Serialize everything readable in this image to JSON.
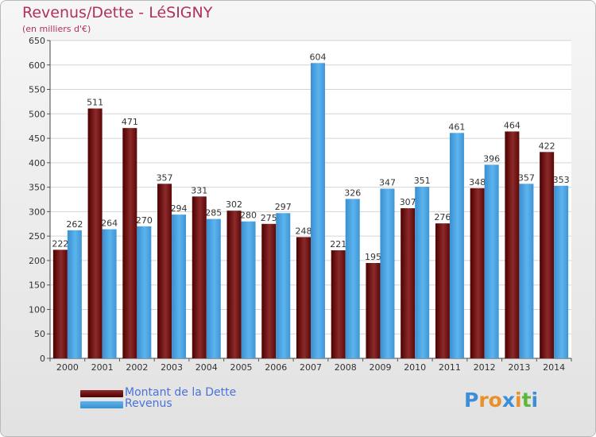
{
  "chart_data": {
    "type": "bar",
    "title": "Revenus/Dette - LéSIGNY",
    "subtitle": "(en milliers d'€)",
    "categories": [
      "2000",
      "2001",
      "2002",
      "2003",
      "2004",
      "2005",
      "2006",
      "2007",
      "2008",
      "2009",
      "2010",
      "2011",
      "2012",
      "2013",
      "2014"
    ],
    "series": [
      {
        "name": "Montant de la Dette",
        "color": "#7a1a1a",
        "values": [
          222,
          511,
          471,
          357,
          331,
          302,
          275,
          248,
          221,
          195,
          307,
          276,
          348,
          464,
          422
        ]
      },
      {
        "name": "Revenus",
        "color": "#4fa7e3",
        "values": [
          262,
          264,
          270,
          294,
          285,
          280,
          297,
          604,
          326,
          347,
          351,
          461,
          396,
          357,
          353
        ]
      }
    ],
    "ylim": [
      0,
      650
    ],
    "yticks": [
      0,
      50,
      100,
      150,
      200,
      250,
      300,
      350,
      400,
      450,
      500,
      550,
      600,
      650
    ],
    "grid": true,
    "legend_position": "bottom-left"
  },
  "logo": {
    "text": "Proxiti",
    "letters": [
      "P",
      "r",
      "o",
      "x",
      "i",
      "t",
      "i"
    ],
    "letter_colors": [
      "#3b8ed8",
      "#e8902a",
      "#e8902a",
      "#3b8ed8",
      "#e8902a",
      "#5cb83a",
      "#3b8ed8"
    ]
  }
}
